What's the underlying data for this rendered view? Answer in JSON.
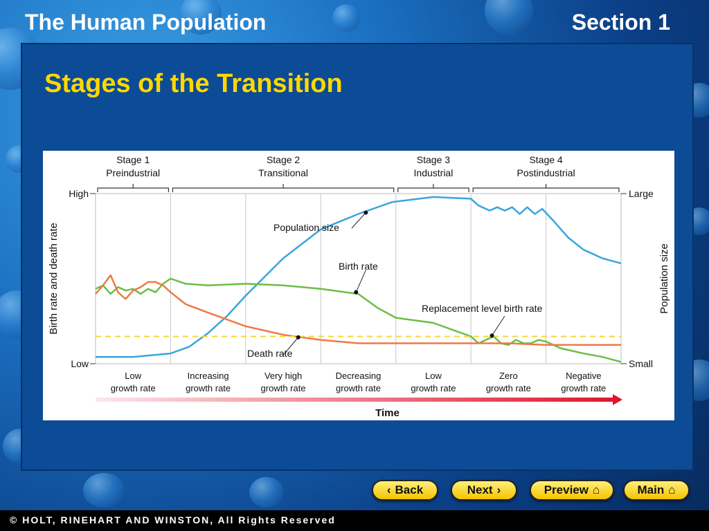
{
  "header": {
    "title": "The Human Population",
    "section": "Section 1"
  },
  "slide": {
    "title": "Stages of the Transition"
  },
  "nav": {
    "back": "Back",
    "next": "Next",
    "preview": "Preview",
    "main": "Main"
  },
  "footer": {
    "copyright": "© HOLT, RINEHART AND WINSTON, All Rights Reserved"
  },
  "colors": {
    "title_yellow": "#ffd800",
    "population": "#3aa5dc",
    "birth": "#6cbd45",
    "death": "#ee7a43",
    "replacement": "#f5d63a"
  },
  "chart_data": {
    "type": "line",
    "stages": [
      {
        "name": "Stage 1",
        "label": "Preindustrial"
      },
      {
        "name": "Stage 2",
        "label": "Transitional"
      },
      {
        "name": "Stage 3",
        "label": "Industrial"
      },
      {
        "name": "Stage 4",
        "label": "Postindustrial"
      }
    ],
    "phases": [
      [
        "Low",
        "growth rate"
      ],
      [
        "Increasing",
        "growth rate"
      ],
      [
        "Very high",
        "growth rate"
      ],
      [
        "Decreasing",
        "growth rate"
      ],
      [
        "Low",
        "growth rate"
      ],
      [
        "Zero",
        "growth rate"
      ],
      [
        "Negative",
        "growth rate"
      ]
    ],
    "xlabel": "Time",
    "ylabel_left": "Birth rate and death rate",
    "ylabel_right": "Population size",
    "left_ticks": {
      "high": "High",
      "low": "Low"
    },
    "right_ticks": {
      "large": "Large",
      "small": "Small"
    },
    "annotations": {
      "population": "Population size",
      "birth": "Birth rate",
      "replacement": "Replacement level birth rate",
      "death": "Death rate"
    },
    "x_range": [
      0,
      7
    ],
    "y_range": [
      0,
      1
    ],
    "series": [
      {
        "name": "Population size",
        "color": "#3aa5dc",
        "x": [
          0,
          0.5,
          1,
          1.25,
          1.5,
          1.75,
          2,
          2.5,
          3,
          3.5,
          3.95,
          4.5,
          5,
          5.1,
          5.25,
          5.35,
          5.45,
          5.55,
          5.65,
          5.75,
          5.85,
          5.95,
          6.1,
          6.3,
          6.5,
          6.75,
          7
        ],
        "y": [
          0.04,
          0.04,
          0.06,
          0.1,
          0.18,
          0.28,
          0.4,
          0.62,
          0.79,
          0.88,
          0.95,
          0.98,
          0.97,
          0.93,
          0.9,
          0.92,
          0.9,
          0.92,
          0.88,
          0.92,
          0.88,
          0.91,
          0.84,
          0.74,
          0.67,
          0.62,
          0.59
        ]
      },
      {
        "name": "Birth rate",
        "color": "#6cbd45",
        "x": [
          0,
          0.1,
          0.2,
          0.3,
          0.4,
          0.5,
          0.6,
          0.7,
          0.8,
          0.9,
          1,
          1.2,
          1.5,
          2,
          2.5,
          3,
          3.5,
          3.75,
          4,
          4.5,
          5,
          5.1,
          5.2,
          5.3,
          5.4,
          5.5,
          5.6,
          5.7,
          5.8,
          5.9,
          6,
          6.2,
          6.5,
          6.75,
          7
        ],
        "y": [
          0.44,
          0.46,
          0.41,
          0.45,
          0.43,
          0.44,
          0.41,
          0.44,
          0.42,
          0.47,
          0.5,
          0.47,
          0.46,
          0.47,
          0.46,
          0.44,
          0.41,
          0.33,
          0.27,
          0.24,
          0.16,
          0.12,
          0.14,
          0.16,
          0.12,
          0.11,
          0.14,
          0.12,
          0.12,
          0.14,
          0.13,
          0.09,
          0.06,
          0.04,
          0.01
        ]
      },
      {
        "name": "Death rate",
        "color": "#ee7a43",
        "x": [
          0,
          0.1,
          0.2,
          0.3,
          0.4,
          0.5,
          0.6,
          0.7,
          0.8,
          0.9,
          1,
          1.2,
          1.5,
          2,
          2.5,
          3,
          3.5,
          4,
          4.5,
          5,
          5.5,
          6,
          6.5,
          7
        ],
        "y": [
          0.41,
          0.46,
          0.52,
          0.42,
          0.38,
          0.43,
          0.45,
          0.48,
          0.48,
          0.46,
          0.42,
          0.35,
          0.3,
          0.22,
          0.17,
          0.14,
          0.12,
          0.12,
          0.12,
          0.12,
          0.12,
          0.11,
          0.11,
          0.11
        ]
      },
      {
        "name": "Replacement level birth rate",
        "color": "#f5d63a",
        "style": "dashed",
        "x": [
          0,
          7
        ],
        "y": [
          0.16,
          0.16
        ]
      }
    ]
  }
}
